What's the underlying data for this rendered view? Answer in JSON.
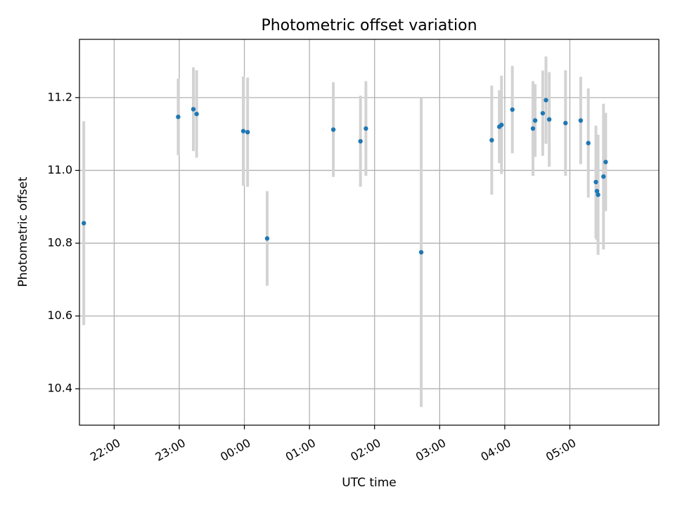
{
  "chart_data": {
    "type": "scatter",
    "title": "Photometric offset variation",
    "xlabel": "UTC time",
    "ylabel": "Photometric offset",
    "x_unit": "UTC time (HH:MM, night spanning midnight)",
    "xlim": [
      "21:28",
      "06:22"
    ],
    "ylim": [
      10.3,
      11.36
    ],
    "grid": true,
    "legend": "none",
    "x_ticks": [
      "22:00",
      "23:00",
      "00:00",
      "01:00",
      "02:00",
      "03:00",
      "04:00",
      "05:00"
    ],
    "y_ticks": [
      "10.4",
      "10.6",
      "10.8",
      "11.0",
      "11.2"
    ],
    "colors": {
      "points": "#1f77b4",
      "errorbars": "#d3d3d3",
      "grid": "#b0b0b0",
      "axes": "#000000"
    },
    "series": [
      {
        "points": [
          {
            "x": "21:32",
            "y": 10.855,
            "err": 0.28
          },
          {
            "x": "22:59",
            "y": 11.147,
            "err": 0.105
          },
          {
            "x": "23:13",
            "y": 11.168,
            "err": 0.115
          },
          {
            "x": "23:16",
            "y": 11.155,
            "err": 0.12
          },
          {
            "x": "23:59",
            "y": 11.108,
            "err": 0.15
          },
          {
            "x": "00:03",
            "y": 11.105,
            "err": 0.15
          },
          {
            "x": "00:21",
            "y": 10.813,
            "err": 0.13
          },
          {
            "x": "01:22",
            "y": 11.112,
            "err": 0.13
          },
          {
            "x": "01:47",
            "y": 11.08,
            "err": 0.125
          },
          {
            "x": "01:52",
            "y": 11.115,
            "err": 0.13
          },
          {
            "x": "02:43",
            "y": 10.775,
            "err": 0.425
          },
          {
            "x": "03:48",
            "y": 11.083,
            "err": 0.15
          },
          {
            "x": "03:55",
            "y": 11.12,
            "err": 0.1
          },
          {
            "x": "03:57",
            "y": 11.125,
            "err": 0.135
          },
          {
            "x": "04:07",
            "y": 11.167,
            "err": 0.12
          },
          {
            "x": "04:26",
            "y": 11.115,
            "err": 0.13
          },
          {
            "x": "04:28",
            "y": 11.137,
            "err": 0.1
          },
          {
            "x": "04:35",
            "y": 11.157,
            "err": 0.117
          },
          {
            "x": "04:38",
            "y": 11.193,
            "err": 0.12
          },
          {
            "x": "04:41",
            "y": 11.14,
            "err": 0.13
          },
          {
            "x": "04:56",
            "y": 11.13,
            "err": 0.145
          },
          {
            "x": "05:10",
            "y": 11.137,
            "err": 0.12
          },
          {
            "x": "05:17",
            "y": 11.075,
            "err": 0.15
          },
          {
            "x": "05:24",
            "y": 10.968,
            "err": 0.155
          },
          {
            "x": "05:25",
            "y": 10.943,
            "err": 0.135
          },
          {
            "x": "05:26",
            "y": 10.933,
            "err": 0.165
          },
          {
            "x": "05:31",
            "y": 10.983,
            "err": 0.2
          },
          {
            "x": "05:33",
            "y": 11.023,
            "err": 0.135
          }
        ]
      }
    ]
  }
}
